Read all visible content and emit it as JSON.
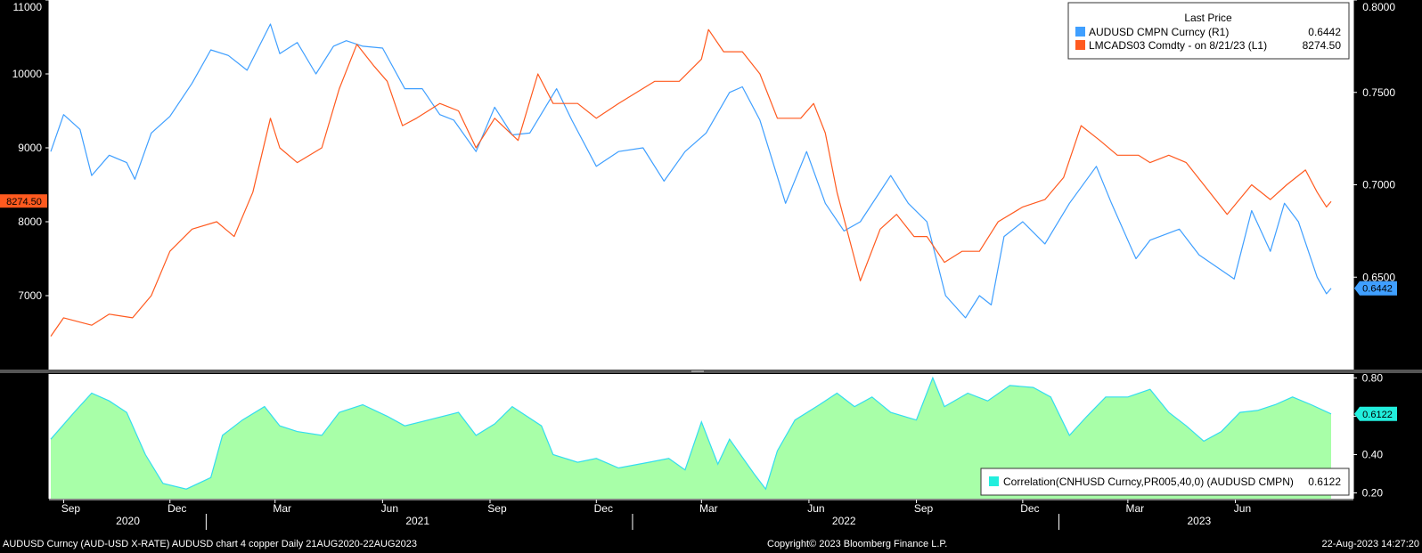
{
  "chart_data": [
    {
      "type": "line",
      "legend": {
        "title": "Last Price",
        "placement": "top-right",
        "entries": [
          {
            "label": "AUDUSD CMPN Curncy  (R1)",
            "value": "0.6442",
            "color": "#3f9fff"
          },
          {
            "label": "LMCADS03 Comdty -  on 8/21/23  (L1)",
            "value": "8274.50",
            "color": "#ff5a1f"
          }
        ]
      },
      "left_axis": {
        "ticks": [
          "7000",
          "8000",
          "9000",
          "10000",
          "11000"
        ],
        "ylim": [
          6000,
          11000
        ]
      },
      "right_axis": {
        "ticks": [
          "0.6500",
          "0.7000",
          "0.7500",
          "0.8000"
        ],
        "ylim": [
          0.6,
          0.8
        ]
      },
      "last_value_tags": {
        "left": "8274.50",
        "right": "0.6442"
      },
      "x_range": [
        "2020-08-21",
        "2023-08-22"
      ],
      "series": [
        {
          "name": "AUDUSD CMPN Curncy",
          "axis": "right",
          "color": "#3f9fff",
          "points": [
            [
              "2020-08-21",
              0.718
            ],
            [
              "2020-09-01",
              0.738
            ],
            [
              "2020-09-15",
              0.73
            ],
            [
              "2020-09-25",
              0.705
            ],
            [
              "2020-10-10",
              0.716
            ],
            [
              "2020-10-25",
              0.712
            ],
            [
              "2020-11-01",
              0.703
            ],
            [
              "2020-11-15",
              0.728
            ],
            [
              "2020-12-01",
              0.737
            ],
            [
              "2020-12-20",
              0.755
            ],
            [
              "2021-01-05",
              0.773
            ],
            [
              "2021-01-20",
              0.77
            ],
            [
              "2021-02-05",
              0.762
            ],
            [
              "2021-02-25",
              0.787
            ],
            [
              "2021-03-05",
              0.771
            ],
            [
              "2021-03-20",
              0.777
            ],
            [
              "2021-04-05",
              0.76
            ],
            [
              "2021-04-20",
              0.775
            ],
            [
              "2021-05-01",
              0.778
            ],
            [
              "2021-05-15",
              0.775
            ],
            [
              "2021-06-01",
              0.774
            ],
            [
              "2021-06-20",
              0.752
            ],
            [
              "2021-07-05",
              0.752
            ],
            [
              "2021-07-20",
              0.738
            ],
            [
              "2021-08-01",
              0.735
            ],
            [
              "2021-08-20",
              0.718
            ],
            [
              "2021-09-05",
              0.742
            ],
            [
              "2021-09-20",
              0.727
            ],
            [
              "2021-10-05",
              0.728
            ],
            [
              "2021-10-28",
              0.752
            ],
            [
              "2021-11-10",
              0.735
            ],
            [
              "2021-12-01",
              0.71
            ],
            [
              "2021-12-20",
              0.718
            ],
            [
              "2022-01-10",
              0.72
            ],
            [
              "2022-01-28",
              0.702
            ],
            [
              "2022-02-15",
              0.718
            ],
            [
              "2022-03-05",
              0.728
            ],
            [
              "2022-03-25",
              0.75
            ],
            [
              "2022-04-05",
              0.753
            ],
            [
              "2022-04-20",
              0.735
            ],
            [
              "2022-05-12",
              0.69
            ],
            [
              "2022-05-30",
              0.718
            ],
            [
              "2022-06-15",
              0.69
            ],
            [
              "2022-07-01",
              0.675
            ],
            [
              "2022-07-15",
              0.68
            ],
            [
              "2022-08-10",
              0.705
            ],
            [
              "2022-08-25",
              0.69
            ],
            [
              "2022-09-10",
              0.68
            ],
            [
              "2022-09-26",
              0.64
            ],
            [
              "2022-10-13",
              0.628
            ],
            [
              "2022-10-25",
              0.64
            ],
            [
              "2022-11-04",
              0.635
            ],
            [
              "2022-11-15",
              0.672
            ],
            [
              "2022-12-01",
              0.68
            ],
            [
              "2022-12-20",
              0.668
            ],
            [
              "2023-01-10",
              0.69
            ],
            [
              "2023-02-02",
              0.71
            ],
            [
              "2023-02-15",
              0.69
            ],
            [
              "2023-03-08",
              0.66
            ],
            [
              "2023-03-20",
              0.67
            ],
            [
              "2023-04-14",
              0.676
            ],
            [
              "2023-05-01",
              0.662
            ],
            [
              "2023-05-31",
              0.649
            ],
            [
              "2023-06-15",
              0.686
            ],
            [
              "2023-07-01",
              0.664
            ],
            [
              "2023-07-13",
              0.69
            ],
            [
              "2023-07-25",
              0.68
            ],
            [
              "2023-08-10",
              0.65
            ],
            [
              "2023-08-18",
              0.641
            ],
            [
              "2023-08-22",
              0.644
            ]
          ]
        },
        {
          "name": "LMCADS03 Comdty",
          "axis": "left",
          "color": "#ff5a1f",
          "points": [
            [
              "2020-08-21",
              6450
            ],
            [
              "2020-09-01",
              6700
            ],
            [
              "2020-09-25",
              6600
            ],
            [
              "2020-10-10",
              6750
            ],
            [
              "2020-10-30",
              6700
            ],
            [
              "2020-11-15",
              7000
            ],
            [
              "2020-12-01",
              7600
            ],
            [
              "2020-12-20",
              7900
            ],
            [
              "2021-01-10",
              8000
            ],
            [
              "2021-01-25",
              7800
            ],
            [
              "2021-02-10",
              8400
            ],
            [
              "2021-02-25",
              9400
            ],
            [
              "2021-03-05",
              9000
            ],
            [
              "2021-03-20",
              8800
            ],
            [
              "2021-04-10",
              9000
            ],
            [
              "2021-04-25",
              9800
            ],
            [
              "2021-05-10",
              10400
            ],
            [
              "2021-05-25",
              10100
            ],
            [
              "2021-06-05",
              9900
            ],
            [
              "2021-06-18",
              9300
            ],
            [
              "2021-06-30",
              9400
            ],
            [
              "2021-07-20",
              9600
            ],
            [
              "2021-08-05",
              9500
            ],
            [
              "2021-08-20",
              9000
            ],
            [
              "2021-09-05",
              9400
            ],
            [
              "2021-09-25",
              9100
            ],
            [
              "2021-10-12",
              10000
            ],
            [
              "2021-10-25",
              9600
            ],
            [
              "2021-11-15",
              9600
            ],
            [
              "2021-12-01",
              9400
            ],
            [
              "2021-12-20",
              9600
            ],
            [
              "2022-01-20",
              9900
            ],
            [
              "2022-02-10",
              9900
            ],
            [
              "2022-03-01",
              10200
            ],
            [
              "2022-03-07",
              10600
            ],
            [
              "2022-03-20",
              10300
            ],
            [
              "2022-04-05",
              10300
            ],
            [
              "2022-04-20",
              10000
            ],
            [
              "2022-05-05",
              9400
            ],
            [
              "2022-05-25",
              9400
            ],
            [
              "2022-06-05",
              9600
            ],
            [
              "2022-06-15",
              9200
            ],
            [
              "2022-06-25",
              8400
            ],
            [
              "2022-07-10",
              7500
            ],
            [
              "2022-07-15",
              7200
            ],
            [
              "2022-08-01",
              7900
            ],
            [
              "2022-08-15",
              8100
            ],
            [
              "2022-08-30",
              7800
            ],
            [
              "2022-09-10",
              7800
            ],
            [
              "2022-09-25",
              7450
            ],
            [
              "2022-10-10",
              7600
            ],
            [
              "2022-10-25",
              7600
            ],
            [
              "2022-11-10",
              8000
            ],
            [
              "2022-12-01",
              8200
            ],
            [
              "2022-12-20",
              8300
            ],
            [
              "2023-01-05",
              8600
            ],
            [
              "2023-01-20",
              9300
            ],
            [
              "2023-02-05",
              9100
            ],
            [
              "2023-02-20",
              8900
            ],
            [
              "2023-03-10",
              8900
            ],
            [
              "2023-03-20",
              8800
            ],
            [
              "2023-04-05",
              8900
            ],
            [
              "2023-04-20",
              8800
            ],
            [
              "2023-05-05",
              8500
            ],
            [
              "2023-05-25",
              8100
            ],
            [
              "2023-06-15",
              8500
            ],
            [
              "2023-07-01",
              8300
            ],
            [
              "2023-07-15",
              8500
            ],
            [
              "2023-07-31",
              8700
            ],
            [
              "2023-08-10",
              8400
            ],
            [
              "2023-08-18",
              8200
            ],
            [
              "2023-08-22",
              8274.5
            ]
          ]
        }
      ],
      "x_ticks": {
        "months": [
          [
            "Sep",
            "2020-09-01"
          ],
          [
            "Dec",
            "2020-12-01"
          ],
          [
            "Mar",
            "2021-03-01"
          ],
          [
            "Jun",
            "2021-06-01"
          ],
          [
            "Sep",
            "2021-09-01"
          ],
          [
            "Dec",
            "2021-12-01"
          ],
          [
            "Mar",
            "2022-03-01"
          ],
          [
            "Jun",
            "2022-06-01"
          ],
          [
            "Sep",
            "2022-09-01"
          ],
          [
            "Dec",
            "2022-12-01"
          ],
          [
            "Mar",
            "2023-03-01"
          ],
          [
            "Jun",
            "2023-06-01"
          ]
        ],
        "years": [
          [
            "2020",
            "2020-10-26"
          ],
          [
            "2021",
            "2021-07-01"
          ],
          [
            "2022",
            "2022-07-01"
          ],
          [
            "2023",
            "2023-05-01"
          ]
        ],
        "year_separators": [
          "2021-01-01",
          "2022-01-01",
          "2023-01-01"
        ]
      }
    },
    {
      "type": "area",
      "legend": {
        "placement": "bottom-right",
        "label": "Correlation(CNHUSD Curncy,PR005,40,0) (AUDUSD CMPN)",
        "value": "0.6122",
        "color": "#22eedd"
      },
      "right_axis": {
        "ticks": [
          "0.20",
          "0.40",
          "0.60",
          "0.80"
        ],
        "ylim": [
          0.17,
          0.82
        ]
      },
      "last_value_tag": "0.6122",
      "series": [
        {
          "name": "Correlation(CNHUSD Curncy,PR005,40,0) (AUDUSD CMPN)",
          "color": "#33ddee",
          "fill": "#99ff99",
          "points": [
            [
              "2020-08-21",
              0.48
            ],
            [
              "2020-09-10",
              0.62
            ],
            [
              "2020-09-25",
              0.72
            ],
            [
              "2020-10-10",
              0.68
            ],
            [
              "2020-10-25",
              0.62
            ],
            [
              "2020-11-10",
              0.4
            ],
            [
              "2020-11-25",
              0.25
            ],
            [
              "2020-12-15",
              0.22
            ],
            [
              "2021-01-05",
              0.28
            ],
            [
              "2021-01-15",
              0.5
            ],
            [
              "2021-02-01",
              0.58
            ],
            [
              "2021-02-20",
              0.65
            ],
            [
              "2021-03-05",
              0.55
            ],
            [
              "2021-03-20",
              0.52
            ],
            [
              "2021-04-10",
              0.5
            ],
            [
              "2021-04-25",
              0.62
            ],
            [
              "2021-05-15",
              0.66
            ],
            [
              "2021-06-05",
              0.6
            ],
            [
              "2021-06-20",
              0.55
            ],
            [
              "2021-07-10",
              0.58
            ],
            [
              "2021-08-05",
              0.62
            ],
            [
              "2021-08-20",
              0.5
            ],
            [
              "2021-09-05",
              0.56
            ],
            [
              "2021-09-20",
              0.65
            ],
            [
              "2021-10-15",
              0.55
            ],
            [
              "2021-10-25",
              0.4
            ],
            [
              "2021-11-15",
              0.36
            ],
            [
              "2021-12-01",
              0.38
            ],
            [
              "2021-12-20",
              0.33
            ],
            [
              "2022-01-15",
              0.36
            ],
            [
              "2022-02-01",
              0.38
            ],
            [
              "2022-02-15",
              0.32
            ],
            [
              "2022-03-01",
              0.57
            ],
            [
              "2022-03-15",
              0.35
            ],
            [
              "2022-03-25",
              0.48
            ],
            [
              "2022-04-15",
              0.3
            ],
            [
              "2022-04-25",
              0.22
            ],
            [
              "2022-05-05",
              0.42
            ],
            [
              "2022-05-20",
              0.58
            ],
            [
              "2022-06-10",
              0.66
            ],
            [
              "2022-06-25",
              0.72
            ],
            [
              "2022-07-10",
              0.65
            ],
            [
              "2022-07-25",
              0.7
            ],
            [
              "2022-08-10",
              0.62
            ],
            [
              "2022-09-01",
              0.58
            ],
            [
              "2022-09-15",
              0.8
            ],
            [
              "2022-09-25",
              0.65
            ],
            [
              "2022-10-15",
              0.72
            ],
            [
              "2022-11-01",
              0.68
            ],
            [
              "2022-11-20",
              0.76
            ],
            [
              "2022-12-10",
              0.75
            ],
            [
              "2022-12-25",
              0.7
            ],
            [
              "2023-01-10",
              0.5
            ],
            [
              "2023-01-25",
              0.6
            ],
            [
              "2023-02-10",
              0.7
            ],
            [
              "2023-03-01",
              0.7
            ],
            [
              "2023-03-20",
              0.74
            ],
            [
              "2023-04-05",
              0.62
            ],
            [
              "2023-04-20",
              0.55
            ],
            [
              "2023-05-05",
              0.47
            ],
            [
              "2023-05-20",
              0.52
            ],
            [
              "2023-06-05",
              0.62
            ],
            [
              "2023-06-20",
              0.63
            ],
            [
              "2023-07-05",
              0.66
            ],
            [
              "2023-07-20",
              0.7
            ],
            [
              "2023-08-05",
              0.66
            ],
            [
              "2023-08-22",
              0.612
            ]
          ]
        }
      ]
    }
  ],
  "footer": {
    "left": "AUDUSD Curncy (AUD-USD X-RATE) AUDUSD chart 4 copper  Daily 21AUG2020-22AUG2023",
    "center": "Copyright© 2023 Bloomberg Finance L.P.",
    "right": "22-Aug-2023 14:27:20"
  }
}
